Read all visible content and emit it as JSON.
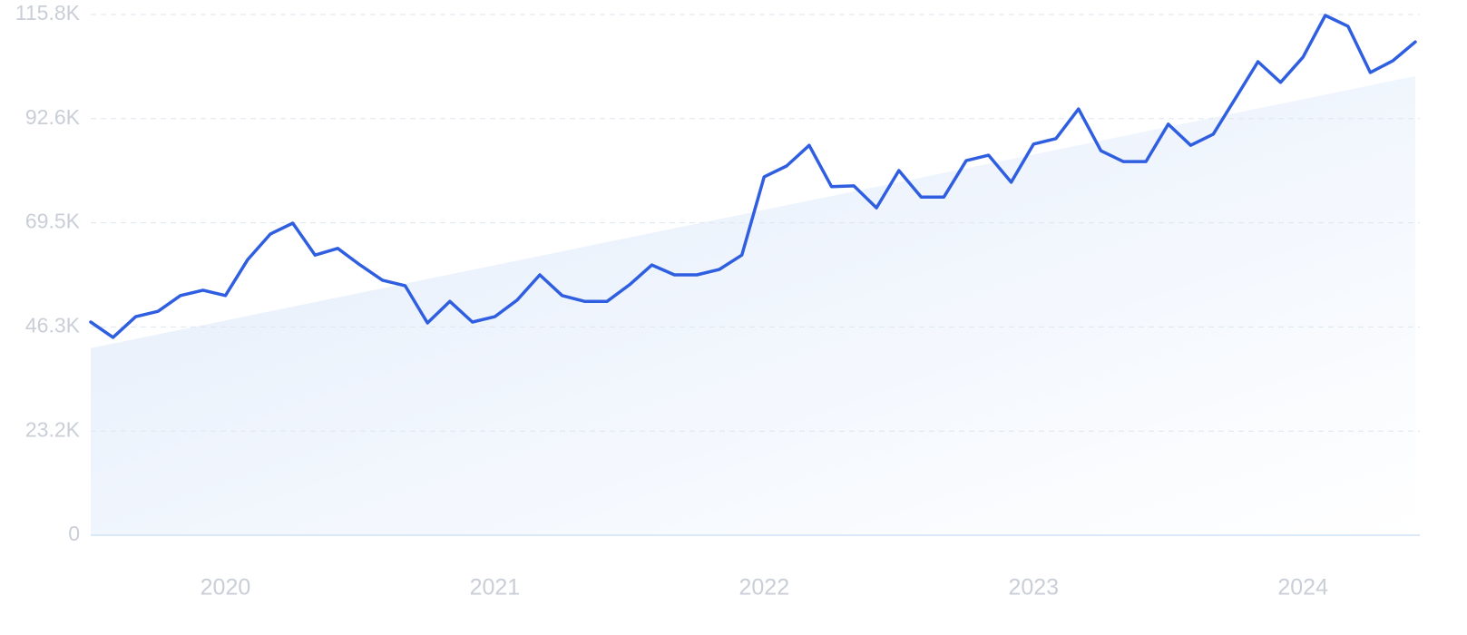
{
  "chart_data": {
    "type": "line",
    "color": "#2f5fe0",
    "grid": true,
    "x": [
      2019.5,
      2019.583,
      2019.667,
      2019.75,
      2019.833,
      2019.917,
      2020,
      2020.083,
      2020.167,
      2020.25,
      2020.333,
      2020.417,
      2020.5,
      2020.583,
      2020.667,
      2020.75,
      2020.833,
      2020.917,
      2021,
      2021.083,
      2021.167,
      2021.25,
      2021.333,
      2021.417,
      2021.5,
      2021.583,
      2021.667,
      2021.75,
      2021.833,
      2021.917,
      2022,
      2022.083,
      2022.167,
      2022.25,
      2022.333,
      2022.417,
      2022.5,
      2022.583,
      2022.667,
      2022.75,
      2022.833,
      2022.917,
      2023,
      2023.083,
      2023.167,
      2023.25,
      2023.333,
      2023.417,
      2023.5,
      2023.583,
      2023.667,
      2023.75,
      2023.833,
      2023.917,
      2024,
      2024.083,
      2024.167,
      2024.25,
      2024.333,
      2024.417
    ],
    "values": [
      47400,
      44000,
      48600,
      49800,
      53300,
      54500,
      53300,
      61300,
      67000,
      69400,
      62300,
      63800,
      60100,
      56700,
      55500,
      47200,
      52000,
      47400,
      48600,
      52300,
      57900,
      53300,
      52000,
      52000,
      55700,
      60100,
      57900,
      57900,
      59100,
      62300,
      79700,
      82100,
      86700,
      77500,
      77700,
      72800,
      81100,
      75200,
      75200,
      83300,
      84500,
      78500,
      87000,
      88200,
      94800,
      85500,
      83100,
      83100,
      91400,
      86700,
      89200,
      97200,
      105300,
      100700,
      106300,
      115600,
      113200,
      102900,
      105500,
      109700
    ],
    "trend": {
      "x": [
        2019.5,
        2024.417
      ],
      "values": [
        41600,
        102100
      ],
      "color": "#e3edfb"
    },
    "xlim": [
      2019.5,
      2024.417
    ],
    "xticks": [
      2020,
      2021,
      2022,
      2023,
      2024
    ],
    "ylim": [
      0,
      115800
    ],
    "yticks": [
      0,
      {
        "value": 23160,
        "label": "23.2K"
      },
      {
        "value": 46320,
        "label": "46.3K"
      },
      {
        "value": 69480,
        "label": "69.5K"
      },
      {
        "value": 92640,
        "label": "92.6K"
      },
      {
        "value": 115800,
        "label": "115.8K"
      }
    ]
  }
}
